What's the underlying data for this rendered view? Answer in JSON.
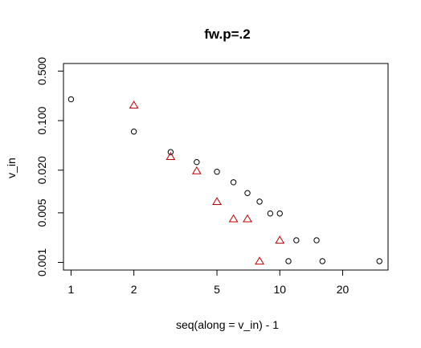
{
  "chart_data": {
    "type": "scatter",
    "title": "fw.p=.2",
    "xlabel": "seq(along = v_in) - 1",
    "ylabel": "v_in",
    "x_scale": "log",
    "y_scale": "log",
    "xlim": [
      0.92,
      33
    ],
    "ylim": [
      0.00078,
      0.64
    ],
    "x_ticks": [
      1,
      2,
      5,
      10,
      20
    ],
    "x_tick_labels": [
      "1",
      "2",
      "5",
      "10",
      "20"
    ],
    "y_ticks": [
      0.001,
      0.005,
      0.02,
      0.1,
      0.5
    ],
    "y_tick_labels": [
      "0.001",
      "0.005",
      "0.020",
      "0.100",
      "0.500"
    ],
    "grid": false,
    "series": [
      {
        "marker": "circle",
        "color": "#000000",
        "points": [
          [
            1,
            0.2
          ],
          [
            2,
            0.07
          ],
          [
            3,
            0.036
          ],
          [
            4,
            0.026
          ],
          [
            5,
            0.019
          ],
          [
            6,
            0.0135
          ],
          [
            7,
            0.0095
          ],
          [
            8,
            0.0072
          ],
          [
            9,
            0.0049
          ],
          [
            10,
            0.0049
          ],
          [
            11,
            0.00104
          ],
          [
            12,
            0.00205
          ],
          [
            15,
            0.00205
          ],
          [
            16,
            0.00104
          ],
          [
            30,
            0.00104
          ]
        ]
      },
      {
        "marker": "triangle",
        "color": "#c00000",
        "points": [
          [
            2,
            0.165
          ],
          [
            3,
            0.031
          ],
          [
            4,
            0.0195
          ],
          [
            5,
            0.0072
          ],
          [
            6,
            0.0041
          ],
          [
            7,
            0.0041
          ],
          [
            8,
            0.00104
          ],
          [
            10,
            0.00205
          ]
        ]
      }
    ]
  }
}
